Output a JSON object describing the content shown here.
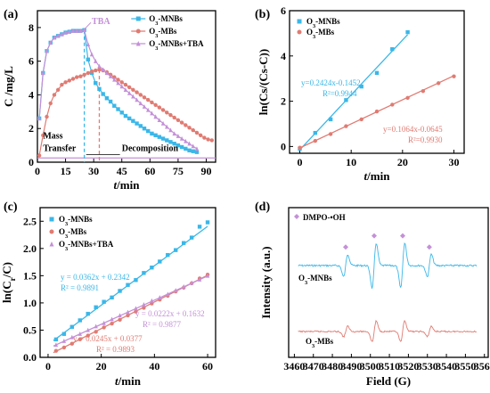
{
  "chart_data": [
    {
      "panel": "(a)",
      "type": "line",
      "xlabel": "t/min",
      "ylabel": "C /mg/L",
      "xlim": [
        0,
        95
      ],
      "ylim": [
        0,
        9
      ],
      "xticks": [
        "0",
        "15",
        "30",
        "45",
        "60",
        "75",
        "90"
      ],
      "yticks": [
        "0",
        "2",
        "4",
        "6",
        "8"
      ],
      "legend_position": "top-right",
      "annotations": {
        "tba": "TBA",
        "mass_transfer": "Mass\nTransfer",
        "decomposition": "Decomposition"
      },
      "series": [
        {
          "name": "O3-MNBs",
          "color": "#3ab7e8",
          "marker": "square",
          "x": [
            1,
            3,
            5,
            7,
            9,
            11,
            13,
            15,
            17,
            19,
            21,
            23,
            25,
            27,
            29,
            31,
            33,
            35,
            37,
            39,
            41,
            43,
            45,
            47,
            49,
            51,
            53,
            55,
            57,
            59,
            61,
            63,
            65,
            67,
            69,
            71,
            73,
            75,
            77,
            79,
            81,
            83,
            85
          ],
          "y": [
            2.6,
            5.3,
            6.6,
            7.1,
            7.4,
            7.5,
            7.6,
            7.7,
            7.75,
            7.8,
            7.8,
            7.8,
            7.85,
            6.1,
            5.3,
            4.7,
            4.35,
            4.05,
            3.8,
            3.6,
            3.35,
            3.15,
            2.95,
            2.75,
            2.6,
            2.45,
            2.3,
            2.15,
            2.0,
            1.85,
            1.7,
            1.6,
            1.5,
            1.4,
            1.3,
            1.2,
            1.1,
            1.0,
            0.9,
            0.8,
            0.7,
            0.65,
            0.6
          ]
        },
        {
          "name": "O3-MBs",
          "color": "#e07b72",
          "marker": "circle",
          "x": [
            1,
            3,
            5,
            7,
            9,
            11,
            13,
            15,
            17,
            19,
            21,
            23,
            25,
            27,
            29,
            31,
            33,
            35,
            37,
            39,
            41,
            43,
            45,
            47,
            49,
            51,
            53,
            55,
            57,
            59,
            61,
            63,
            65,
            67,
            69,
            71,
            73,
            75,
            77,
            79,
            81,
            83,
            85,
            87,
            89,
            91,
            93
          ],
          "y": [
            0.4,
            1.6,
            2.7,
            3.5,
            4.0,
            4.3,
            4.6,
            4.75,
            4.85,
            4.95,
            5.05,
            5.1,
            5.2,
            5.3,
            5.4,
            5.45,
            5.5,
            5.45,
            5.35,
            5.2,
            5.05,
            4.9,
            4.75,
            4.6,
            4.45,
            4.3,
            4.15,
            4.0,
            3.85,
            3.7,
            3.55,
            3.4,
            3.25,
            3.1,
            2.95,
            2.8,
            2.65,
            2.5,
            2.35,
            2.2,
            2.05,
            1.9,
            1.75,
            1.6,
            1.45,
            1.35,
            1.3
          ]
        },
        {
          "name": "O3-MNBs+TBA",
          "color": "#c490d8",
          "marker": "triangle",
          "x": [
            1,
            3,
            5,
            7,
            9,
            11,
            13,
            15,
            17,
            19,
            21,
            23,
            25,
            27,
            29,
            31,
            33,
            35,
            37,
            39,
            41,
            43,
            45,
            47,
            49,
            51,
            53,
            55,
            57,
            59,
            61,
            63,
            65,
            67,
            69,
            71,
            73,
            75,
            77,
            79,
            81,
            83,
            85
          ],
          "y": [
            2.6,
            5.3,
            6.6,
            7.1,
            7.4,
            7.5,
            7.6,
            7.7,
            7.75,
            7.8,
            7.8,
            7.8,
            7.85,
            7.0,
            6.4,
            6.0,
            5.7,
            5.5,
            5.3,
            5.1,
            4.9,
            4.7,
            4.5,
            4.3,
            4.1,
            3.9,
            3.7,
            3.5,
            3.3,
            3.1,
            2.9,
            2.7,
            2.5,
            2.3,
            2.1,
            1.9,
            1.7,
            1.55,
            1.4,
            1.25,
            1.1,
            0.95,
            0.8
          ]
        }
      ]
    },
    {
      "panel": "(b)",
      "type": "scatter",
      "xlabel": "t/min",
      "ylabel": "ln(Cs/(Cs-C))",
      "xlim": [
        -2,
        32
      ],
      "ylim": [
        -0.3,
        6
      ],
      "xticks": [
        "0",
        "10",
        "20",
        "30"
      ],
      "yticks": [
        "0",
        "2",
        "4",
        "6"
      ],
      "legend_position": "top-left",
      "series": [
        {
          "name": "O3-MNBs",
          "color": "#3ab7e8",
          "marker": "square",
          "x": [
            0,
            3,
            6,
            9,
            12,
            15,
            18,
            21
          ],
          "y": [
            -0.1,
            0.6,
            1.2,
            2.05,
            2.65,
            3.25,
            4.3,
            5.05
          ],
          "fit": {
            "slope": 0.2424,
            "intercept": -0.1452,
            "x_range": [
              0,
              21
            ]
          }
        },
        {
          "name": "O3-MBs",
          "color": "#e07b72",
          "marker": "circle",
          "x": [
            0,
            3,
            6,
            9,
            12,
            15,
            18,
            21,
            24,
            27,
            30
          ],
          "y": [
            -0.05,
            0.25,
            0.55,
            0.9,
            1.2,
            1.55,
            1.85,
            2.15,
            2.45,
            2.8,
            3.1
          ],
          "fit": {
            "slope": 0.1064,
            "intercept": -0.0645,
            "x_range": [
              0,
              30
            ]
          }
        }
      ],
      "equations": [
        {
          "text": "y=0.2424x-0.1452",
          "r2": "R²=0.9944",
          "color": "#3ab7e8"
        },
        {
          "text": "y=0.1064x-0.0645",
          "r2": "R²=0.9930",
          "color": "#e07b72"
        }
      ]
    },
    {
      "panel": "(c)",
      "type": "scatter",
      "xlabel": "t/min",
      "ylabel": "ln(Cr/C)",
      "xlim": [
        -3,
        63
      ],
      "ylim": [
        0,
        2.75
      ],
      "xticks": [
        "0",
        "20",
        "40",
        "60"
      ],
      "yticks": [
        "0.0",
        "0.5",
        "1.0",
        "1.5",
        "2.0",
        "2.5"
      ],
      "legend_position": "top-left",
      "series": [
        {
          "name": "O3-MNBs",
          "color": "#3ab7e8",
          "marker": "square",
          "x": [
            3,
            6,
            9,
            12,
            15,
            18,
            21,
            24,
            27,
            30,
            33,
            36,
            39,
            42,
            45,
            48,
            51,
            54,
            57,
            60
          ],
          "y": [
            0.33,
            0.43,
            0.56,
            0.68,
            0.8,
            0.92,
            1.02,
            1.1,
            1.22,
            1.33,
            1.42,
            1.55,
            1.65,
            1.76,
            1.88,
            1.97,
            2.1,
            2.2,
            2.4,
            2.48
          ],
          "fit": {
            "slope": 0.0362,
            "intercept": 0.2342,
            "x_range": [
              2,
              60
            ]
          }
        },
        {
          "name": "O3-MBs",
          "color": "#e07b72",
          "marker": "circle",
          "x": [
            3,
            6,
            9,
            12,
            15,
            18,
            21,
            24,
            27,
            30,
            33,
            36,
            39,
            42,
            45,
            48,
            51,
            54,
            57,
            60
          ],
          "y": [
            0.12,
            0.18,
            0.25,
            0.33,
            0.4,
            0.47,
            0.55,
            0.62,
            0.69,
            0.77,
            0.84,
            0.91,
            0.99,
            1.06,
            1.13,
            1.21,
            1.28,
            1.36,
            1.45,
            1.52
          ],
          "fit": {
            "slope": 0.0245,
            "intercept": 0.0377,
            "x_range": [
              2,
              60
            ]
          }
        },
        {
          "name": "O3-MNBs+TBA",
          "color": "#c490d8",
          "marker": "triangle",
          "x": [
            3,
            6,
            9,
            12,
            15,
            18,
            21,
            24,
            27,
            30,
            33,
            36,
            39,
            42,
            45,
            48,
            51,
            54,
            57,
            60
          ],
          "y": [
            0.23,
            0.3,
            0.37,
            0.43,
            0.5,
            0.57,
            0.63,
            0.7,
            0.77,
            0.83,
            0.9,
            0.97,
            1.04,
            1.1,
            1.16,
            1.23,
            1.3,
            1.37,
            1.43,
            1.5
          ],
          "fit": {
            "slope": 0.0222,
            "intercept": 0.1632,
            "x_range": [
              2,
              60
            ]
          }
        }
      ],
      "equations": [
        {
          "text": "y = 0.0362x + 0.2342",
          "r2": "R² = 0.9891",
          "color": "#3ab7e8"
        },
        {
          "text": "y = 0.0222x + 0.1632",
          "r2": "R² = 0.9877",
          "color": "#c490d8"
        },
        {
          "text": "y = 0.0245x + 0.0377",
          "r2": "R² = 0.9893",
          "color": "#e07b72"
        }
      ]
    },
    {
      "panel": "(d)",
      "type": "line",
      "xlabel": "Field (G)",
      "ylabel": "Intensity (a.u.)",
      "xlim": [
        3457,
        3562
      ],
      "xticks": [
        "3460",
        "3470",
        "3480",
        "3490",
        "3500",
        "3510",
        "3520",
        "3530",
        "3540",
        "3550",
        "3560"
      ],
      "legend_position": "top-left",
      "legend_text": "DMPO-•OH",
      "peak_positions_G": [
        3487,
        3502,
        3517,
        3531
      ],
      "peak_relative_heights": [
        1,
        2,
        2,
        1
      ],
      "series": [
        {
          "name": "O3-MNBs",
          "color": "#3ab7e8"
        },
        {
          "name": "O3-MBs",
          "color": "#e07b72"
        }
      ]
    }
  ]
}
